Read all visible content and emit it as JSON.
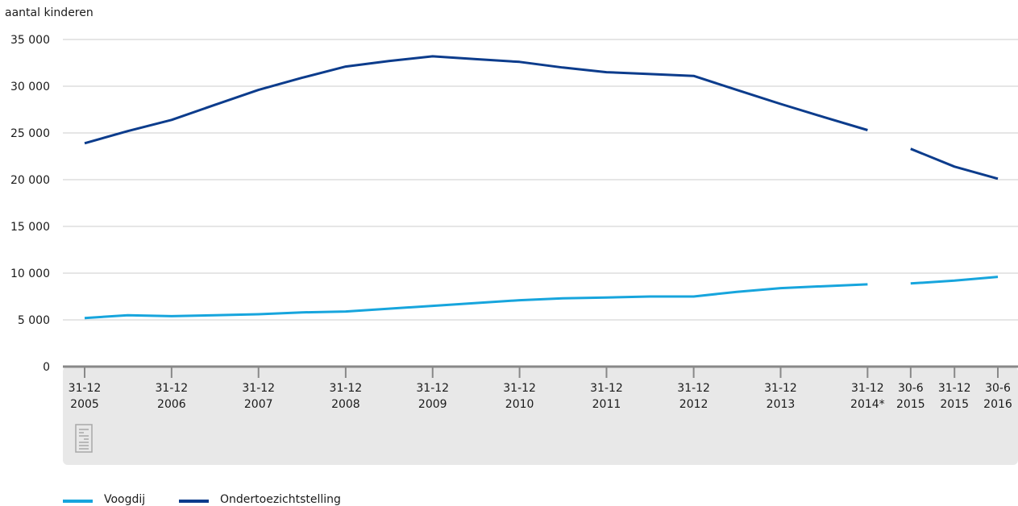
{
  "chart_data": {
    "type": "line",
    "title": "",
    "ylabel": "aantal kinderen",
    "xlabel": "",
    "ylim": [
      0,
      35000
    ],
    "yticks": [
      0,
      5000,
      10000,
      15000,
      20000,
      25000,
      30000,
      35000
    ],
    "ytick_labels": [
      "0",
      "5 000",
      "10 000",
      "15 000",
      "20 000",
      "25 000",
      "30 000",
      "35 000"
    ],
    "grid": true,
    "legend_position": "bottom-left",
    "x": [
      "2005-12-31",
      "2006-06-30",
      "2006-12-31",
      "2007-06-30",
      "2007-12-31",
      "2008-06-30",
      "2008-12-31",
      "2009-06-30",
      "2009-12-31",
      "2010-06-30",
      "2010-12-31",
      "2011-06-30",
      "2011-12-31",
      "2012-06-30",
      "2012-12-31",
      "2013-06-30",
      "2013-12-31",
      "2014-06-30",
      "2014-12-31",
      "2015-06-30",
      "2015-12-31",
      "2016-06-30"
    ],
    "x_tick_labels": [
      {
        "x": "2005-12-31",
        "line1": "31-12",
        "line2": "2005"
      },
      {
        "x": "2006-12-31",
        "line1": "31-12",
        "line2": "2006"
      },
      {
        "x": "2007-12-31",
        "line1": "31-12",
        "line2": "2007"
      },
      {
        "x": "2008-12-31",
        "line1": "31-12",
        "line2": "2008"
      },
      {
        "x": "2009-12-31",
        "line1": "31-12",
        "line2": "2009"
      },
      {
        "x": "2010-12-31",
        "line1": "31-12",
        "line2": "2010"
      },
      {
        "x": "2011-12-31",
        "line1": "31-12",
        "line2": "2011"
      },
      {
        "x": "2012-12-31",
        "line1": "31-12",
        "line2": "2012"
      },
      {
        "x": "2013-12-31",
        "line1": "31-12",
        "line2": "2013"
      },
      {
        "x": "2014-12-31",
        "line1": "31-12",
        "line2": "2014*"
      },
      {
        "x": "2015-06-30",
        "line1": "30-6",
        "line2": "2015"
      },
      {
        "x": "2015-12-31",
        "line1": "31-12",
        "line2": "2015"
      },
      {
        "x": "2016-06-30",
        "line1": "30-6",
        "line2": "2016"
      }
    ],
    "series": [
      {
        "name": "Voogdij",
        "color": "#17a5dd",
        "values": [
          5200,
          5500,
          5400,
          5500,
          5600,
          5800,
          5900,
          6200,
          6500,
          6800,
          7100,
          7300,
          7400,
          7500,
          7500,
          8000,
          8400,
          8600,
          8800,
          null,
          null,
          null
        ],
        "segment2": [
          {
            "x": "2015-06-30",
            "y": 8900
          },
          {
            "x": "2015-12-31",
            "y": 9200
          },
          {
            "x": "2016-06-30",
            "y": 9600
          }
        ]
      },
      {
        "name": "Ondertoezichtstelling",
        "color": "#0c3c8c",
        "values": [
          23900,
          25200,
          26400,
          28000,
          29600,
          30900,
          32100,
          32700,
          33200,
          32900,
          32600,
          32000,
          31500,
          31300,
          31100,
          29600,
          28100,
          26700,
          25300,
          null,
          null,
          null
        ],
        "segment2": [
          {
            "x": "2015-06-30",
            "y": 23300
          },
          {
            "x": "2015-12-31",
            "y": 21400
          },
          {
            "x": "2016-06-30",
            "y": 20100
          }
        ]
      }
    ]
  },
  "icons": {
    "logo": "cbs-logo"
  },
  "colors": {
    "panel": "#e8e8e8",
    "grid": "#cccccc",
    "axis": "#888888"
  }
}
